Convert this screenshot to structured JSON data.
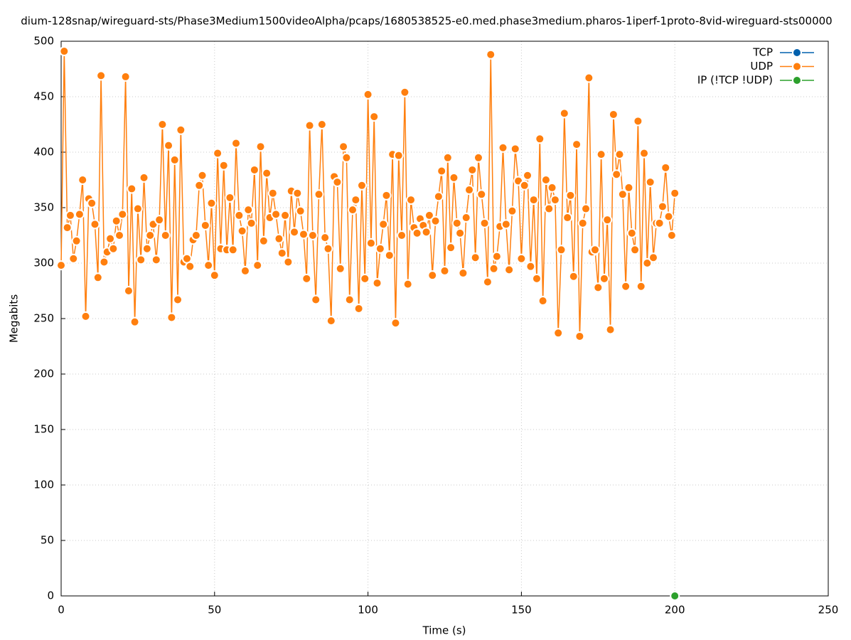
{
  "chart_data": {
    "type": "line",
    "title": "dium-128snap/wireguard-sts/Phase3Medium1500videoAlpha/pcaps/1680538525-e0.med.phase3medium.pharos-1iperf-1proto-8vid-wireguard-sts00000",
    "x_label": "Time (s)",
    "y_label": "Megabits",
    "xlim": [
      0,
      250
    ],
    "xticks": [
      0,
      50,
      100,
      150,
      200,
      250
    ],
    "ylim": [
      0,
      500
    ],
    "yticks": [
      0,
      50,
      100,
      150,
      200,
      250,
      300,
      350,
      400,
      450,
      500
    ],
    "grid": true,
    "legend": "top-right",
    "series": [
      {
        "name": "TCP",
        "color": "#0060ad",
        "x": [],
        "values": []
      },
      {
        "name": "UDP",
        "color": "#ff7f0e",
        "x": [
          0,
          1,
          2,
          3,
          4,
          5,
          6,
          7,
          8,
          9,
          10,
          11,
          12,
          13,
          14,
          15,
          16,
          17,
          18,
          19,
          20,
          21,
          22,
          23,
          24,
          25,
          26,
          27,
          28,
          29,
          30,
          31,
          32,
          33,
          34,
          35,
          36,
          37,
          38,
          39,
          40,
          41,
          42,
          43,
          44,
          45,
          46,
          47,
          48,
          49,
          50,
          51,
          52,
          53,
          54,
          55,
          56,
          57,
          58,
          59,
          60,
          61,
          62,
          63,
          64,
          65,
          66,
          67,
          68,
          69,
          70,
          71,
          72,
          73,
          74,
          75,
          76,
          77,
          78,
          79,
          80,
          81,
          82,
          83,
          84,
          85,
          86,
          87,
          88,
          89,
          90,
          91,
          92,
          93,
          94,
          95,
          96,
          97,
          98,
          99,
          100,
          101,
          102,
          103,
          104,
          105,
          106,
          107,
          108,
          109,
          110,
          111,
          112,
          113,
          114,
          115,
          116,
          117,
          118,
          119,
          120,
          121,
          122,
          123,
          124,
          125,
          126,
          127,
          128,
          129,
          130,
          131,
          132,
          133,
          134,
          135,
          136,
          137,
          138,
          139,
          140,
          141,
          142,
          143,
          144,
          145,
          146,
          147,
          148,
          149,
          150,
          151,
          152,
          153,
          154,
          155,
          156,
          157,
          158,
          159,
          160,
          161,
          162,
          163,
          164,
          165,
          166,
          167,
          168,
          169,
          170,
          171,
          172,
          173,
          174,
          175,
          176,
          177,
          178,
          179,
          180,
          181,
          182,
          183,
          184,
          185,
          186,
          187,
          188,
          189,
          190,
          191,
          192,
          193,
          194,
          195,
          196,
          197,
          198,
          199,
          200
        ],
        "values": [
          298,
          491,
          332,
          343,
          304,
          320,
          344,
          375,
          252,
          358,
          354,
          335,
          287,
          469,
          301,
          310,
          322,
          313,
          338,
          325,
          344,
          468,
          275,
          367,
          247,
          349,
          303,
          377,
          313,
          325,
          335,
          303,
          339,
          425,
          325,
          406,
          251,
          393,
          267,
          420,
          301,
          304,
          297,
          321,
          325,
          370,
          379,
          334,
          298,
          354,
          289,
          399,
          313,
          388,
          312,
          359,
          312,
          408,
          343,
          329,
          293,
          348,
          336,
          384,
          298,
          405,
          320,
          381,
          341,
          363,
          344,
          322,
          309,
          343,
          301,
          365,
          328,
          363,
          347,
          326,
          286,
          424,
          325,
          267,
          362,
          425,
          323,
          313,
          248,
          378,
          373,
          295,
          405,
          395,
          267,
          348,
          357,
          259,
          370,
          286,
          452,
          318,
          432,
          282,
          313,
          335,
          361,
          307,
          398,
          246,
          397,
          325,
          454,
          281,
          357,
          332,
          327,
          340,
          334,
          328,
          343,
          289,
          338,
          360,
          383,
          293,
          395,
          314,
          377,
          336,
          327,
          291,
          341,
          366,
          384,
          305,
          395,
          362,
          336,
          283,
          488,
          295,
          306,
          333,
          404,
          335,
          294,
          347,
          403,
          374,
          304,
          370,
          379,
          297,
          357,
          286,
          412,
          266,
          375,
          349,
          368,
          357,
          237,
          312,
          435,
          341,
          361,
          288,
          407,
          234,
          336,
          349,
          467,
          310,
          312,
          278,
          398,
          286,
          339,
          240,
          434,
          380,
          398,
          362,
          279,
          368,
          327,
          312,
          428,
          279,
          399,
          300,
          373,
          305,
          336,
          336,
          351,
          386,
          342,
          325,
          363
        ]
      },
      {
        "name": "IP (!TCP  !UDP)",
        "color": "#2ca02c",
        "x": [
          200
        ],
        "values": [
          0
        ]
      }
    ]
  }
}
